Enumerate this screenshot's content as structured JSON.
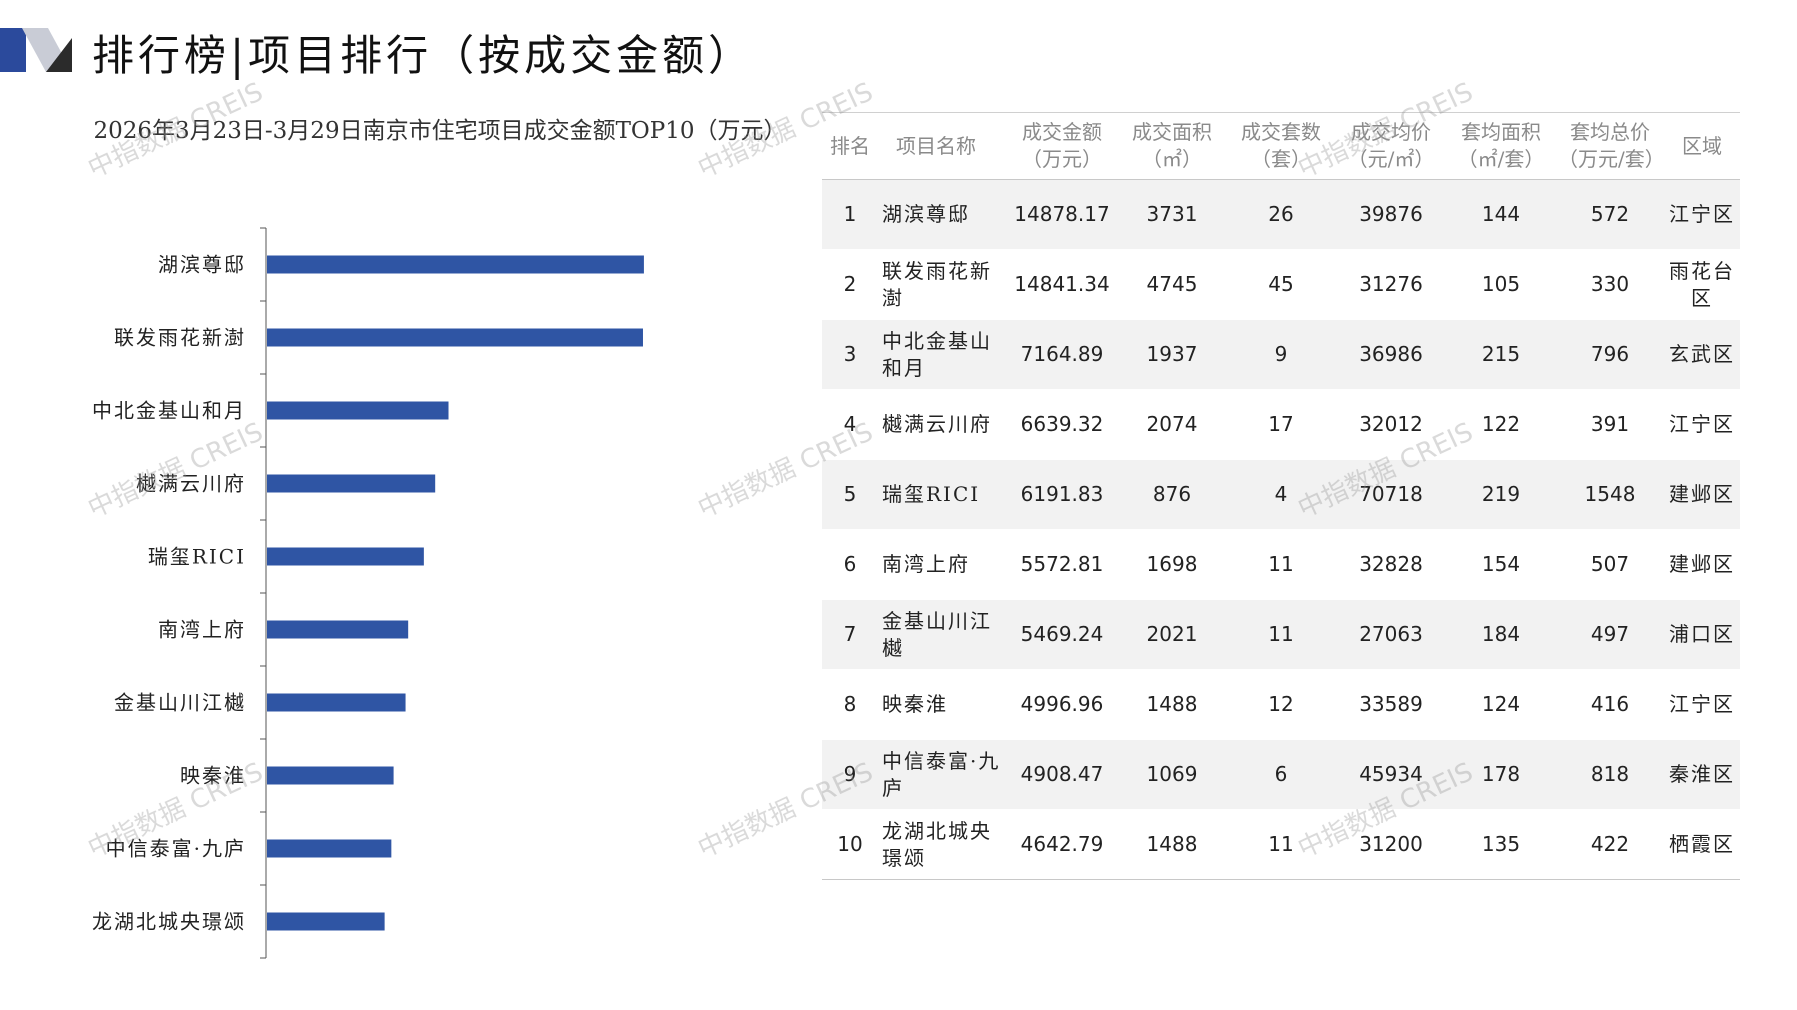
{
  "page": {
    "title": "排行榜|项目排行（按成交金额）",
    "watermark": "中指数据 CREIS",
    "colors": {
      "accent": "#2f55a4",
      "logo_dark": "#2b4a9c",
      "logo_light": "#c9ccd6"
    }
  },
  "chart_data": {
    "type": "bar",
    "orientation": "horizontal",
    "title": "2026年3月23日-3月29日南京市住宅项目成交金额TOP10（万元）",
    "categories": [
      "湖滨尊邸",
      "联发雨花新澍",
      "中北金基山和月",
      "樾满云川府",
      "瑞玺RICI",
      "南湾上府",
      "金基山川江樾",
      "映秦淮",
      "中信泰富·九庐",
      "龙湖北城央璟颂"
    ],
    "values": [
      14878.17,
      14841.34,
      7164.89,
      6639.32,
      6191.83,
      5572.81,
      5469.24,
      4996.96,
      4908.47,
      4642.79
    ],
    "xlim": [
      0,
      30000
    ],
    "grid": false,
    "legend": "none",
    "bar_color": "#2f55a4"
  },
  "table": {
    "headers": [
      [
        "排名"
      ],
      [
        "项目名称"
      ],
      [
        "成交金额",
        "（万元）"
      ],
      [
        "成交面积",
        "（㎡）"
      ],
      [
        "成交套数",
        "（套）"
      ],
      [
        "成交均价",
        "（元/㎡）"
      ],
      [
        "套均面积",
        "（㎡/套）"
      ],
      [
        "套均总价",
        "（万元/套）"
      ],
      [
        "区域"
      ]
    ],
    "rows": [
      [
        "1",
        "湖滨尊邸",
        "14878.17",
        "3731",
        "26",
        "39876",
        "144",
        "572",
        "江宁区"
      ],
      [
        "2",
        "联发雨花新澍",
        "14841.34",
        "4745",
        "45",
        "31276",
        "105",
        "330",
        "雨花台区"
      ],
      [
        "3",
        "中北金基山和月",
        "7164.89",
        "1937",
        "9",
        "36986",
        "215",
        "796",
        "玄武区"
      ],
      [
        "4",
        "樾满云川府",
        "6639.32",
        "2074",
        "17",
        "32012",
        "122",
        "391",
        "江宁区"
      ],
      [
        "5",
        "瑞玺RICI",
        "6191.83",
        "876",
        "4",
        "70718",
        "219",
        "1548",
        "建邺区"
      ],
      [
        "6",
        "南湾上府",
        "5572.81",
        "1698",
        "11",
        "32828",
        "154",
        "507",
        "建邺区"
      ],
      [
        "7",
        "金基山川江樾",
        "5469.24",
        "2021",
        "11",
        "27063",
        "184",
        "497",
        "浦口区"
      ],
      [
        "8",
        "映秦淮",
        "4996.96",
        "1488",
        "12",
        "33589",
        "124",
        "416",
        "江宁区"
      ],
      [
        "9",
        "中信泰富·九庐",
        "4908.47",
        "1069",
        "6",
        "45934",
        "178",
        "818",
        "秦淮区"
      ],
      [
        "10",
        "龙湖北城央璟颂",
        "4642.79",
        "1488",
        "11",
        "31200",
        "135",
        "422",
        "栖霞区"
      ]
    ]
  }
}
